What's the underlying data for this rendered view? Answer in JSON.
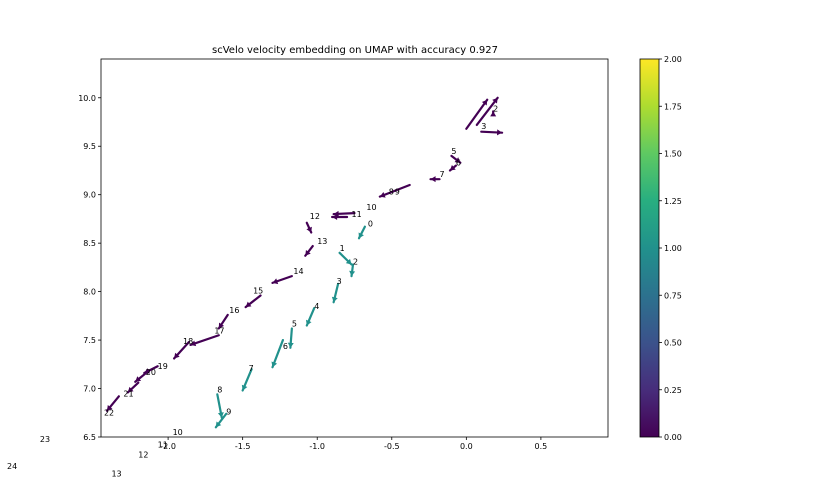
{
  "chart_data": {
    "type": "quiver",
    "title": "scVelo velocity embedding on UMAP with accuracy 0.927",
    "xlabel": "",
    "ylabel": "",
    "xlim": [
      -2.45,
      0.95
    ],
    "ylim": [
      6.5,
      10.4
    ],
    "x_ticks": [
      "-2.0",
      "-1.5",
      "-1.0",
      "-0.5",
      "0.0",
      "0.5"
    ],
    "x_tick_values": [
      -2.0,
      -1.5,
      -1.0,
      -0.5,
      0.0,
      0.5
    ],
    "y_ticks": [
      "6.5",
      "7.0",
      "7.5",
      "8.0",
      "8.5",
      "9.0",
      "9.5",
      "10.0"
    ],
    "y_tick_values": [
      6.5,
      7.0,
      7.5,
      8.0,
      8.5,
      9.0,
      9.5,
      10.0
    ],
    "colorbar": {
      "min": 0.0,
      "max": 2.0,
      "ticks": [
        "0.00",
        "0.25",
        "0.50",
        "0.75",
        "1.00",
        "1.25",
        "1.50",
        "1.75",
        "2.00"
      ],
      "tick_values": [
        0.0,
        0.25,
        0.5,
        0.75,
        1.0,
        1.25,
        1.5,
        1.75,
        2.0
      ]
    },
    "colors": {
      "group0": "#440154",
      "group1": "#21918c"
    },
    "arrows": [
      {
        "x": 0.0,
        "y": 9.68,
        "dx": 0.14,
        "dy": 0.3,
        "value": 0
      },
      {
        "x": 0.07,
        "y": 9.72,
        "dx": 0.14,
        "dy": 0.28,
        "value": 0
      },
      {
        "x": 0.18,
        "y": 9.84,
        "dx": 0.0,
        "dy": 0.02,
        "value": 0
      },
      {
        "x": 0.1,
        "y": 9.65,
        "dx": 0.14,
        "dy": -0.01,
        "value": 0
      },
      {
        "x": -0.1,
        "y": 9.4,
        "dx": 0.06,
        "dy": -0.07,
        "value": 0
      },
      {
        "x": -0.07,
        "y": 9.3,
        "dx": -0.04,
        "dy": -0.05,
        "value": 0
      },
      {
        "x": -0.18,
        "y": 9.16,
        "dx": -0.06,
        "dy": 0.0,
        "value": 0
      },
      {
        "x": -0.38,
        "y": 9.1,
        "dx": -0.2,
        "dy": -0.12,
        "value": 0
      },
      {
        "x": -0.75,
        "y": 8.81,
        "dx": -0.14,
        "dy": -0.01,
        "value": 0
      },
      {
        "x": -0.8,
        "y": 8.77,
        "dx": -0.1,
        "dy": 0.0,
        "value": 0
      },
      {
        "x": -1.07,
        "y": 8.71,
        "dx": 0.03,
        "dy": -0.1,
        "value": 0
      },
      {
        "x": -1.03,
        "y": 8.47,
        "dx": -0.05,
        "dy": -0.1,
        "value": 0
      },
      {
        "x": -1.17,
        "y": 8.16,
        "dx": -0.13,
        "dy": -0.07,
        "value": 0
      },
      {
        "x": -1.38,
        "y": 7.96,
        "dx": -0.1,
        "dy": -0.12,
        "value": 0
      },
      {
        "x": -1.6,
        "y": 7.76,
        "dx": -0.06,
        "dy": -0.14,
        "value": 0
      },
      {
        "x": -1.66,
        "y": 7.55,
        "dx": -0.19,
        "dy": -0.1,
        "value": 0
      },
      {
        "x": -1.86,
        "y": 7.48,
        "dx": -0.1,
        "dy": -0.17,
        "value": 0
      },
      {
        "x": -2.07,
        "y": 7.23,
        "dx": -0.09,
        "dy": -0.07,
        "value": 0
      },
      {
        "x": -2.14,
        "y": 7.17,
        "dx": -0.08,
        "dy": -0.1,
        "value": 0
      },
      {
        "x": -2.2,
        "y": 7.06,
        "dx": -0.07,
        "dy": -0.1,
        "value": 0
      },
      {
        "x": -2.33,
        "y": 6.92,
        "dx": -0.08,
        "dy": -0.15,
        "value": 0
      },
      {
        "x": -0.68,
        "y": 8.67,
        "dx": -0.04,
        "dy": -0.12,
        "value": 1
      },
      {
        "x": -0.85,
        "y": 8.4,
        "dx": 0.08,
        "dy": -0.12,
        "value": 1
      },
      {
        "x": -0.76,
        "y": 8.28,
        "dx": -0.01,
        "dy": -0.12,
        "value": 1
      },
      {
        "x": -0.86,
        "y": 8.08,
        "dx": -0.03,
        "dy": -0.19,
        "value": 1
      },
      {
        "x": -1.02,
        "y": 7.83,
        "dx": -0.05,
        "dy": -0.18,
        "value": 1
      },
      {
        "x": -1.17,
        "y": 7.62,
        "dx": -0.01,
        "dy": -0.2,
        "value": 1
      },
      {
        "x": -1.23,
        "y": 7.5,
        "dx": -0.07,
        "dy": -0.28,
        "value": 1
      },
      {
        "x": -1.44,
        "y": 7.2,
        "dx": -0.06,
        "dy": -0.22,
        "value": 1
      },
      {
        "x": -1.67,
        "y": 6.94,
        "dx": 0.03,
        "dy": -0.24,
        "value": 1
      },
      {
        "x": -1.61,
        "y": 6.74,
        "dx": -0.07,
        "dy": -0.14,
        "value": 1
      }
    ],
    "labels": [
      {
        "text": "2",
        "x": 0.18,
        "y": 9.86
      },
      {
        "text": "3",
        "x": 0.1,
        "y": 9.68
      },
      {
        "text": "5",
        "x": -0.1,
        "y": 9.42
      },
      {
        "text": "6",
        "x": -0.07,
        "y": 9.3
      },
      {
        "text": "7",
        "x": -0.18,
        "y": 9.18
      },
      {
        "text": "8",
        "x": -0.52,
        "y": 9.0
      },
      {
        "text": "9",
        "x": -0.48,
        "y": 9.0
      },
      {
        "text": "10",
        "x": -0.67,
        "y": 8.84
      },
      {
        "text": "11",
        "x": -0.77,
        "y": 8.77
      },
      {
        "text": "12",
        "x": -1.05,
        "y": 8.75
      },
      {
        "text": "13",
        "x": -1.0,
        "y": 8.49
      },
      {
        "text": "14",
        "x": -1.16,
        "y": 8.18
      },
      {
        "text": "15",
        "x": -1.43,
        "y": 7.98
      },
      {
        "text": "16",
        "x": -1.59,
        "y": 7.78
      },
      {
        "text": "17",
        "x": -1.69,
        "y": 7.57
      },
      {
        "text": "18",
        "x": -1.9,
        "y": 7.46
      },
      {
        "text": "19",
        "x": -2.07,
        "y": 7.2
      },
      {
        "text": "20",
        "x": -2.15,
        "y": 7.14
      },
      {
        "text": "21",
        "x": -2.3,
        "y": 6.92
      },
      {
        "text": "22",
        "x": -2.43,
        "y": 6.72
      },
      {
        "text": "0",
        "x": -0.66,
        "y": 8.67
      },
      {
        "text": "1",
        "x": -0.85,
        "y": 8.42
      },
      {
        "text": "2",
        "x": -0.76,
        "y": 8.28
      },
      {
        "text": "3",
        "x": -0.87,
        "y": 8.08
      },
      {
        "text": "4",
        "x": -1.02,
        "y": 7.82
      },
      {
        "text": "5",
        "x": -1.17,
        "y": 7.64
      },
      {
        "text": "6",
        "x": -1.23,
        "y": 7.41
      },
      {
        "text": "7",
        "x": -1.46,
        "y": 7.18
      },
      {
        "text": "8",
        "x": -1.67,
        "y": 6.96
      },
      {
        "text": "9",
        "x": -1.61,
        "y": 6.73
      },
      {
        "text": "10",
        "x": -1.97,
        "y": 6.52
      },
      {
        "text": "11",
        "x": -2.07,
        "y": 6.39
      },
      {
        "text": "12",
        "x": -2.2,
        "y": 6.29
      },
      {
        "text": "13",
        "x": -2.38,
        "y": 6.09
      },
      {
        "text": "23",
        "x": -2.86,
        "y": 6.45
      },
      {
        "text": "24",
        "x": -3.08,
        "y": 6.17
      }
    ]
  }
}
